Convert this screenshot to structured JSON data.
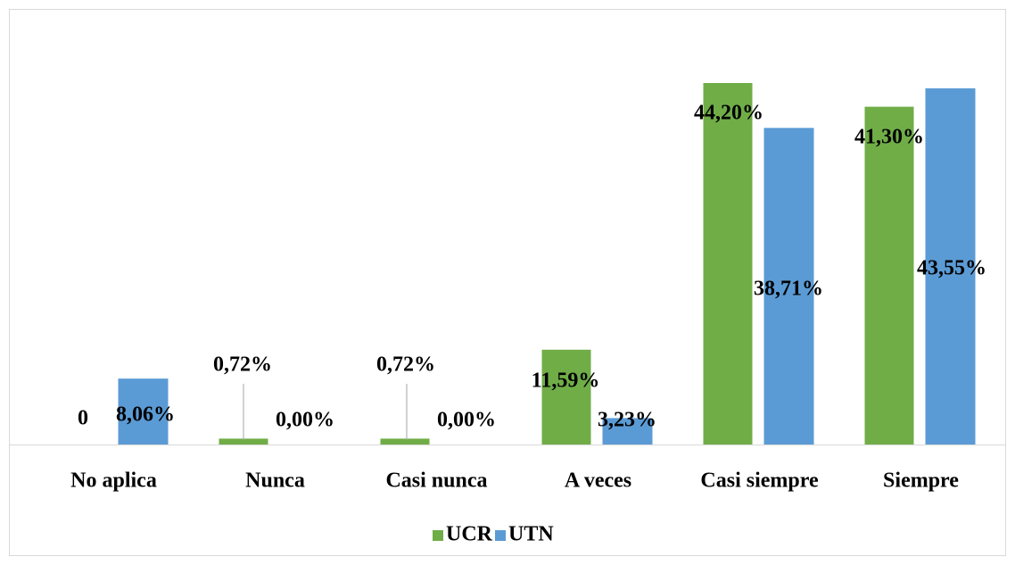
{
  "chart_data": {
    "type": "bar",
    "categories": [
      "No aplica",
      "Nunca",
      "Casi nunca",
      "A veces",
      "Casi siempre",
      "Siempre"
    ],
    "series": [
      {
        "name": "UCR",
        "color": "#70ad47",
        "values": [
          0,
          0.72,
          0.72,
          11.59,
          44.2,
          41.3
        ],
        "value_labels": [
          "0",
          "0,72%",
          "0,72%",
          "11,59%",
          "44,20%",
          "41,30%"
        ]
      },
      {
        "name": "UTN",
        "color": "#5b9bd5",
        "values": [
          8.06,
          0,
          0,
          3.23,
          38.71,
          43.55
        ],
        "value_labels": [
          "8,06%",
          "0,00%",
          "0,00%",
          "3,23%",
          "38,71%",
          "43,55%"
        ]
      }
    ],
    "legend": "bottom"
  }
}
